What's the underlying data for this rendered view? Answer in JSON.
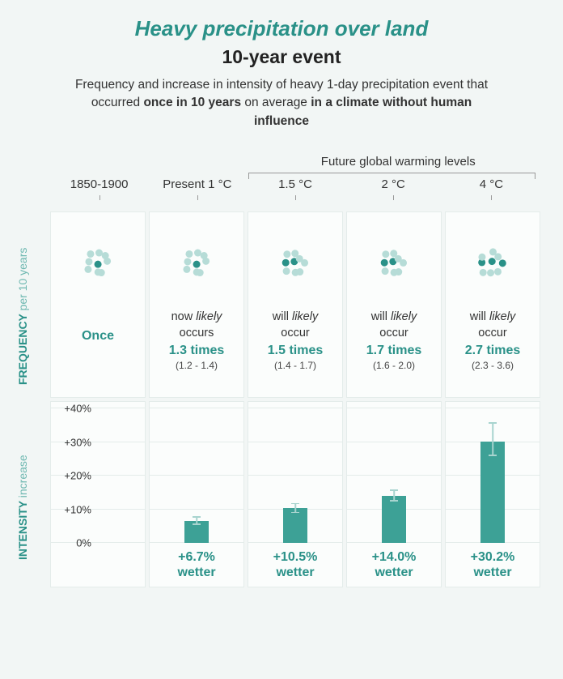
{
  "colors": {
    "accent": "#2a9188",
    "accent_light": "#a8d4cf",
    "panel_bg": "#fbfdfc",
    "panel_border": "#e4ecea",
    "page_bg": "#f2f6f5",
    "text": "#333333",
    "bar_fill": "#3da196"
  },
  "header": {
    "title": "Heavy precipitation over land",
    "subtitle": "10-year event",
    "desc_pre": "Frequency and increase in intensity of heavy 1-day precipitation event that occurred ",
    "desc_b1": "once in 10 years",
    "desc_mid": " on average ",
    "desc_b2": "in a climate without human influence"
  },
  "future_label": "Future global warming levels",
  "columns": [
    {
      "label": "1850-1900"
    },
    {
      "label": "Present 1 °C"
    },
    {
      "label": "1.5 °C"
    },
    {
      "label": "2 °C"
    },
    {
      "label": "4 °C"
    }
  ],
  "ylabel_freq_main": "FREQUENCY",
  "ylabel_freq_sub": "per 10 years",
  "ylabel_inten_main": "INTENSITY",
  "ylabel_inten_sub": "increase",
  "freq": [
    {
      "once_label": "Once",
      "dark_dots": 1
    },
    {
      "prefix": "now ",
      "likely": "likely",
      "suffix": " occurs",
      "times": "1.3 times",
      "range": "(1.2 - 1.4)",
      "dark_dots": 1
    },
    {
      "prefix": "will ",
      "likely": "likely",
      "suffix": " occur",
      "times": "1.5 times",
      "range": "(1.4 - 1.7)",
      "dark_dots": 2
    },
    {
      "prefix": "will ",
      "likely": "likely",
      "suffix": " occur",
      "times": "1.7 times",
      "range": "(1.6 - 2.0)",
      "dark_dots": 2
    },
    {
      "prefix": "will ",
      "likely": "likely",
      "suffix": " occur",
      "times": "2.7 times",
      "range": "(2.3 - 3.6)",
      "dark_dots": 3
    }
  ],
  "intensity": {
    "ylim": [
      0,
      40
    ],
    "ytick_step": 10,
    "tick_labels": [
      "0%",
      "+10%",
      "+20%",
      "+30%",
      "+40%"
    ],
    "bars": [
      {
        "value": null,
        "low": null,
        "high": null,
        "label_pct": "",
        "label_word": ""
      },
      {
        "value": 6.7,
        "low": 5.5,
        "high": 8.0,
        "label_pct": "+6.7%",
        "label_word": "wetter"
      },
      {
        "value": 10.5,
        "low": 9.0,
        "high": 12.0,
        "label_pct": "+10.5%",
        "label_word": "wetter"
      },
      {
        "value": 14.0,
        "low": 12.5,
        "high": 16.0,
        "label_pct": "+14.0%",
        "label_word": "wetter"
      },
      {
        "value": 30.2,
        "low": 26.0,
        "high": 36.0,
        "label_pct": "+30.2%",
        "label_word": "wetter"
      }
    ]
  },
  "dot_cluster": {
    "radius": 4.5,
    "spread": 12,
    "light_color": "#b6dcd7",
    "dark_color": "#2a9188",
    "count": 9
  }
}
